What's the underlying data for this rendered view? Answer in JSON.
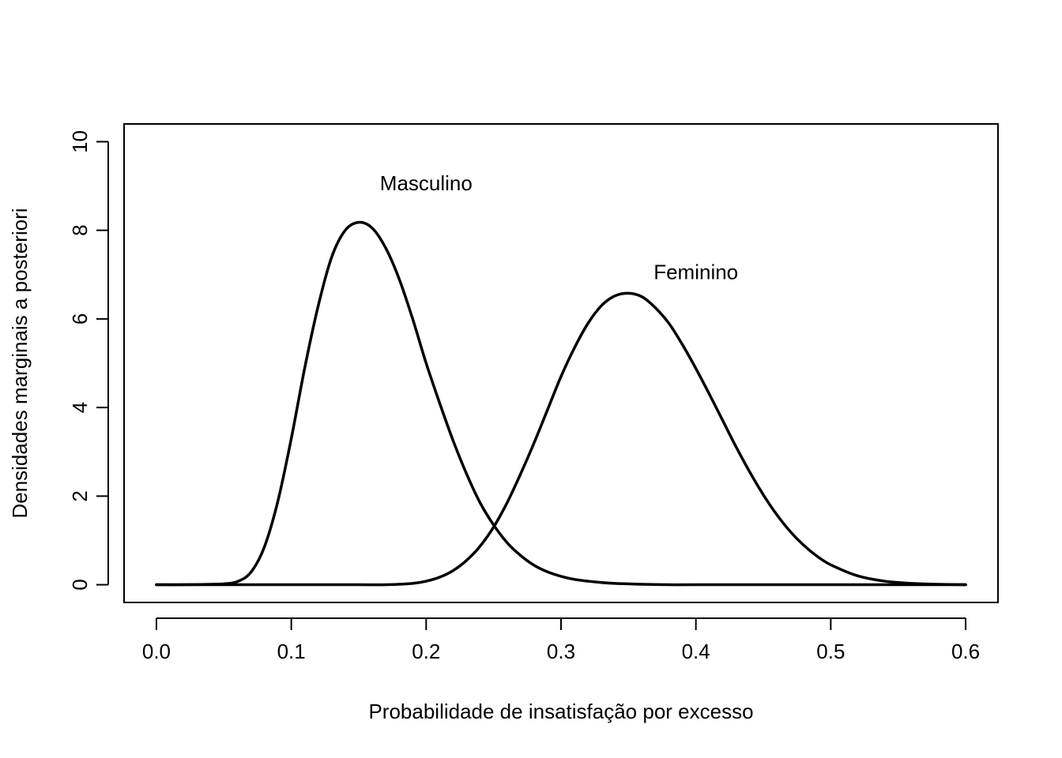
{
  "chart_data": {
    "type": "line",
    "title": "",
    "xlabel": "Probabilidade de insatisfação por excesso",
    "ylabel": "Densidades marginais a posteriori",
    "xlim": [
      -0.024,
      0.624
    ],
    "ylim": [
      -0.4,
      10.4
    ],
    "grid": false,
    "legend": "none",
    "x_ticks": [
      0.0,
      0.1,
      0.2,
      0.3,
      0.4,
      0.5,
      0.6
    ],
    "x_tick_labels": [
      "0.0",
      "0.1",
      "0.2",
      "0.3",
      "0.4",
      "0.5",
      "0.6"
    ],
    "y_ticks": [
      0,
      2,
      4,
      6,
      8,
      10
    ],
    "y_tick_labels": [
      "0",
      "2",
      "4",
      "6",
      "8",
      "10"
    ],
    "line_color": "#000000",
    "series": [
      {
        "x": [
          0.0,
          0.02,
          0.04,
          0.05,
          0.06,
          0.07,
          0.08,
          0.09,
          0.1,
          0.11,
          0.12,
          0.13,
          0.14,
          0.15,
          0.16,
          0.17,
          0.18,
          0.19,
          0.2,
          0.21,
          0.22,
          0.23,
          0.24,
          0.25,
          0.26,
          0.27,
          0.28,
          0.29,
          0.3,
          0.31,
          0.32,
          0.33,
          0.34,
          0.35,
          0.36,
          0.38,
          0.4,
          0.45,
          0.5,
          0.55,
          0.6
        ],
        "values": [
          0.0,
          0.0,
          0.01,
          0.02,
          0.07,
          0.28,
          0.85,
          1.88,
          3.3,
          4.9,
          6.3,
          7.4,
          8.0,
          8.18,
          8.05,
          7.6,
          6.9,
          6.0,
          5.0,
          4.1,
          3.25,
          2.5,
          1.85,
          1.35,
          0.95,
          0.66,
          0.44,
          0.29,
          0.19,
          0.12,
          0.08,
          0.05,
          0.03,
          0.02,
          0.01,
          0.0,
          0.0,
          0.0,
          0.0,
          0.0,
          0.0
        ]
      },
      {
        "x": [
          0.0,
          0.1,
          0.15,
          0.17,
          0.19,
          0.2,
          0.21,
          0.22,
          0.23,
          0.24,
          0.25,
          0.26,
          0.27,
          0.28,
          0.29,
          0.3,
          0.31,
          0.32,
          0.33,
          0.34,
          0.35,
          0.36,
          0.37,
          0.38,
          0.39,
          0.4,
          0.41,
          0.42,
          0.43,
          0.44,
          0.45,
          0.46,
          0.47,
          0.48,
          0.49,
          0.5,
          0.52,
          0.54,
          0.56,
          0.58,
          0.6
        ],
        "values": [
          0.0,
          0.0,
          0.0,
          0.0,
          0.03,
          0.08,
          0.17,
          0.32,
          0.55,
          0.87,
          1.3,
          1.85,
          2.5,
          3.2,
          3.95,
          4.7,
          5.35,
          5.9,
          6.3,
          6.52,
          6.58,
          6.5,
          6.25,
          5.9,
          5.42,
          4.88,
          4.3,
          3.7,
          3.1,
          2.54,
          2.03,
          1.58,
          1.2,
          0.89,
          0.64,
          0.45,
          0.2,
          0.08,
          0.03,
          0.01,
          0.0
        ]
      }
    ],
    "annotations": [
      {
        "text": "Masculino",
        "x": 0.2,
        "y": 8.9
      },
      {
        "text": "Feminino",
        "x": 0.4,
        "y": 6.9
      }
    ]
  }
}
